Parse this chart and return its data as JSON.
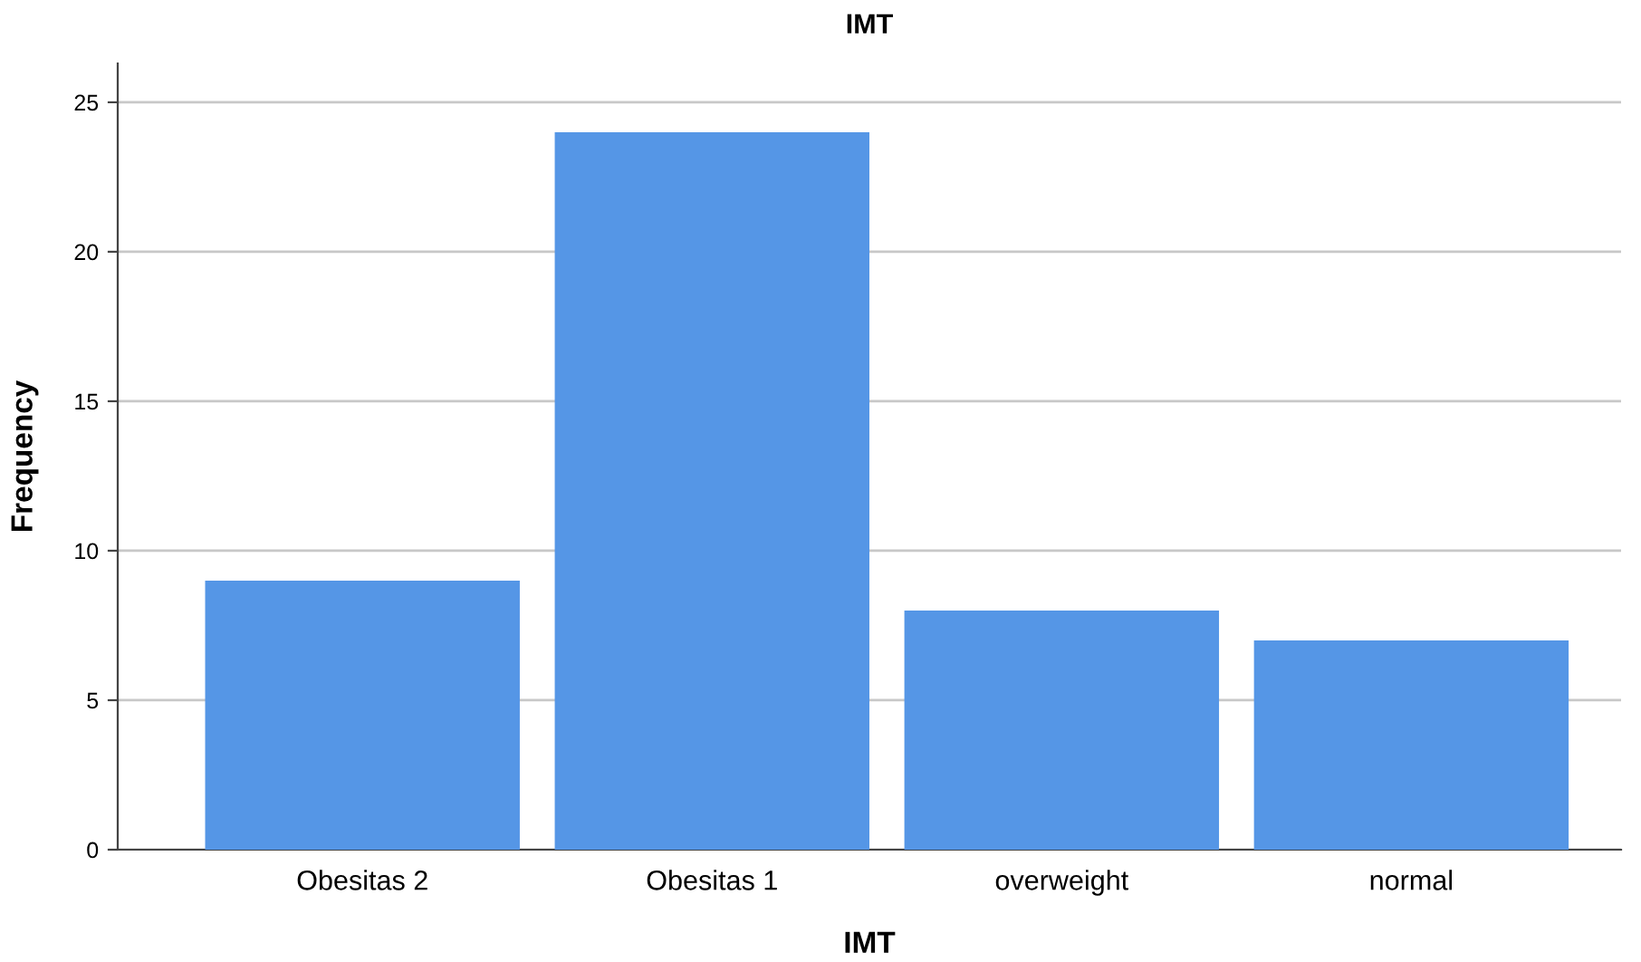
{
  "chart_data": {
    "type": "bar",
    "title": "IMT",
    "xlabel": "IMT",
    "ylabel": "Frequency",
    "categories": [
      "Obesitas 2",
      "Obesitas 1",
      "overweight",
      "normal"
    ],
    "values": [
      9,
      24,
      8,
      7
    ],
    "color": "#5596e6",
    "ylim": [
      0,
      26.3
    ],
    "yticks": [
      0,
      5,
      10,
      15,
      20,
      25
    ],
    "grid": "y",
    "legend": false
  }
}
